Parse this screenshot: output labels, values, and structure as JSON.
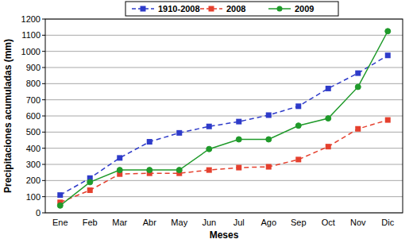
{
  "chart_data": {
    "type": "line",
    "x_label": "Meses",
    "y_label": "Precipitaciones acumuladas (mm)",
    "categories": [
      "Ene",
      "Feb",
      "Mar",
      "Abr",
      "May",
      "Jun",
      "Jul",
      "Ago",
      "Sep",
      "Oct",
      "Nov",
      "Dic"
    ],
    "series": [
      {
        "name": "1910-2008",
        "color": "#2e3bc9",
        "marker": "square",
        "line_style": "dashed",
        "values": [
          110,
          215,
          340,
          440,
          495,
          535,
          565,
          605,
          660,
          770,
          865,
          975
        ]
      },
      {
        "name": "2008",
        "color": "#e5402e",
        "marker": "square",
        "line_style": "dashed",
        "values": [
          65,
          140,
          240,
          245,
          245,
          265,
          280,
          285,
          330,
          410,
          520,
          575
        ]
      },
      {
        "name": "2009",
        "color": "#1f9a2a",
        "marker": "circle",
        "line_style": "solid",
        "values": [
          45,
          190,
          265,
          265,
          265,
          395,
          455,
          455,
          540,
          585,
          780,
          1125
        ]
      }
    ],
    "ylim": [
      0,
      1200
    ],
    "yticks": [
      0,
      100,
      200,
      300,
      400,
      500,
      600,
      700,
      800,
      900,
      1000,
      1100,
      1200
    ],
    "grid": true,
    "legend": "top"
  }
}
